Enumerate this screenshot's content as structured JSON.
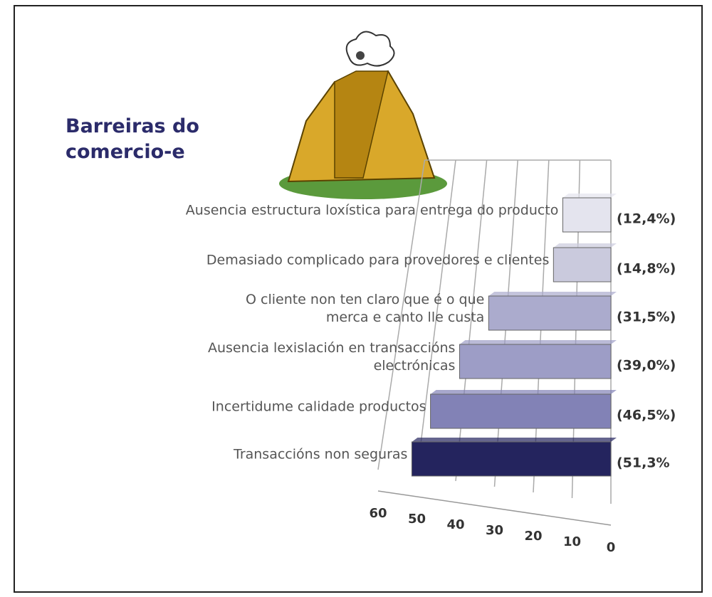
{
  "chart_data": {
    "type": "bar",
    "orientation": "horizontal",
    "title": "Barreiras do comercio-e",
    "categories": [
      "Ausencia estructura loxística para entrega do producto",
      "Demasiado complicado para provedores e clientes",
      "O cliente non ten claro que é o que merca e canto lle custa",
      "Ausencia lexislación en transaccións electrónicas",
      "Incertidume calidade productos",
      "Transaccións non seguras"
    ],
    "values": [
      12.4,
      14.8,
      31.5,
      39.0,
      46.5,
      51.3
    ],
    "value_labels": [
      "(12,4%)",
      "(14,8%)",
      "(31,5%)",
      "(39,0%)",
      "(46,5%)",
      "(51,3%"
    ],
    "colors": [
      "#e4e4ee",
      "#cacadd",
      "#ababcd",
      "#9d9dc6",
      "#8282b6",
      "#24245e"
    ],
    "xlim": [
      0,
      60
    ],
    "xticks": [
      60,
      50,
      40,
      30,
      20,
      10,
      0
    ],
    "x_reversed": true,
    "grid": true
  }
}
